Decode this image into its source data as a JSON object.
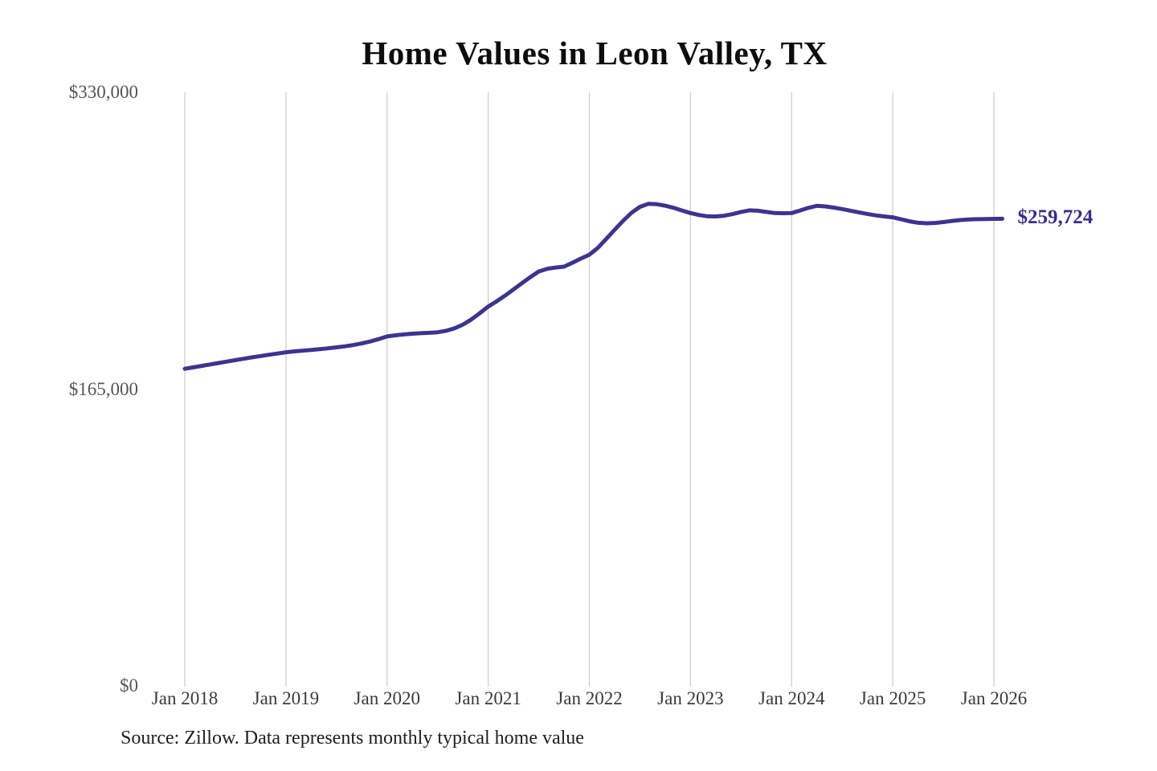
{
  "title": "Home Values in Leon Valley, TX",
  "end_label": "$259,724",
  "source_note": "Source: Zillow. Data represents monthly typical home value",
  "y_axis": {
    "labels": [
      "$330,000",
      "$165,000",
      "$0"
    ]
  },
  "x_axis": {
    "labels": [
      "Jan 2018",
      "Jan 2019",
      "Jan 2020",
      "Jan 2021",
      "Jan 2022",
      "Jan 2023",
      "Jan 2024",
      "Jan 2025",
      "Jan 2026"
    ]
  },
  "colors": {
    "line": "#3c3490",
    "end_label": "#352e8c",
    "grid": "#cfcfcf",
    "title": "#0d0d0d",
    "y_label": "#555555",
    "x_label": "#3a3a3a",
    "source": "#1f1f1f",
    "background": "#ffffff"
  },
  "chart_data": {
    "type": "line",
    "title": "Home Values in Leon Valley, TX",
    "series_name": "Monthly typical home value",
    "x_monthly_start": "2018-01",
    "x_monthly_end": "2026-02",
    "x_tick_labels": [
      "Jan 2018",
      "Jan 2019",
      "Jan 2020",
      "Jan 2021",
      "Jan 2022",
      "Jan 2023",
      "Jan 2024",
      "Jan 2025",
      "Jan 2026"
    ],
    "y_ticks": [
      0,
      165000,
      330000
    ],
    "y_tick_labels": [
      "$0",
      "$165,000",
      "$330,000"
    ],
    "ylim": [
      0,
      330000
    ],
    "grid": "vertical-only",
    "legend": "none",
    "final_value": 259724,
    "final_value_label": "$259,724",
    "values": [
      176300,
      177100,
      177900,
      178700,
      179500,
      180300,
      181100,
      181900,
      182700,
      183400,
      184100,
      184800,
      185500,
      186000,
      186400,
      186800,
      187200,
      187700,
      188200,
      188800,
      189500,
      190400,
      191500,
      192800,
      194300,
      194900,
      195400,
      195800,
      196100,
      196300,
      196600,
      197400,
      198800,
      200900,
      203700,
      207200,
      210900,
      213800,
      217000,
      220400,
      223900,
      227300,
      230400,
      231900,
      232600,
      233100,
      235300,
      237600,
      239700,
      243500,
      248500,
      253600,
      258600,
      263000,
      266300,
      268000,
      267800,
      267000,
      265800,
      264300,
      262900,
      261800,
      261100,
      261000,
      261400,
      262300,
      263500,
      264400,
      264200,
      263500,
      262900,
      262800,
      262900,
      264300,
      265800,
      266900,
      266600,
      265900,
      265100,
      264200,
      263300,
      262400,
      261600,
      261000,
      260500,
      259400,
      258300,
      257500,
      257200,
      257400,
      257900,
      258500,
      259000,
      259300,
      259500,
      259600,
      259650,
      259724
    ]
  }
}
